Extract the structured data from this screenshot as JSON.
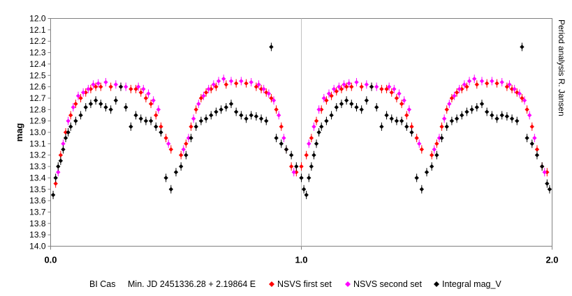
{
  "chart_data": {
    "type": "scatter",
    "title": "",
    "xlabel": "",
    "ylabel": "mag",
    "xlim": [
      0.0,
      2.0
    ],
    "ylim": [
      14.0,
      12.0
    ],
    "y_inverted": true,
    "x_ticks": [
      "0.0",
      "1.0",
      "2.0"
    ],
    "y_ticks": [
      "12.0",
      "12.1",
      "12.2",
      "12.3",
      "12.4",
      "12.5",
      "12.6",
      "12.7",
      "12.8",
      "12.9",
      "13.0",
      "13.1",
      "13.2",
      "13.3",
      "13.4",
      "13.5",
      "13.6",
      "13.7",
      "13.8",
      "13.9",
      "14.0"
    ],
    "side_annotation": "Period analysis  R. Jansen",
    "footer": {
      "star": "BI Cas",
      "ephemeris": "Min. JD 2451336.28 + 2.19864 E"
    },
    "grid": "vertical line at 1.0",
    "legend_position": "bottom",
    "series": [
      {
        "name": "NSVS first set",
        "color": "#ff0000",
        "marker": "diamond",
        "x": [
          0.02,
          0.04,
          0.06,
          0.08,
          0.1,
          0.12,
          0.14,
          0.16,
          0.18,
          0.2,
          0.24,
          0.28,
          0.32,
          0.34,
          0.36,
          0.38,
          0.4,
          0.42,
          0.44,
          0.46,
          0.48,
          0.52,
          0.54,
          0.56,
          0.58,
          0.6,
          0.62,
          0.64,
          0.66,
          0.7,
          0.74,
          0.78,
          0.82,
          0.84,
          0.86,
          0.88,
          0.9,
          0.92,
          0.94,
          0.96,
          0.98,
          1.0,
          1.02,
          1.04,
          1.06,
          1.08,
          1.1,
          1.12,
          1.14,
          1.16,
          1.18,
          1.2,
          1.24,
          1.28,
          1.32,
          1.34,
          1.36,
          1.38,
          1.4,
          1.42,
          1.44,
          1.46,
          1.48,
          1.52,
          1.54,
          1.56,
          1.58,
          1.6,
          1.62,
          1.64,
          1.66,
          1.7,
          1.74,
          1.78,
          1.82,
          1.84,
          1.86,
          1.88,
          1.9,
          1.92,
          1.94,
          1.96,
          1.98
        ],
        "y": [
          13.45,
          13.2,
          13.0,
          12.85,
          12.75,
          12.7,
          12.65,
          12.62,
          12.6,
          12.6,
          12.6,
          12.6,
          12.62,
          12.62,
          12.65,
          12.7,
          12.75,
          12.85,
          12.95,
          13.05,
          13.15,
          13.2,
          13.1,
          12.95,
          12.8,
          12.7,
          12.65,
          12.62,
          12.6,
          12.58,
          12.57,
          12.57,
          12.6,
          12.62,
          12.65,
          12.7,
          12.8,
          12.95,
          13.15,
          13.3,
          13.35,
          13.3,
          13.2,
          13.05,
          12.9,
          12.8,
          12.72,
          12.68,
          12.64,
          12.62,
          12.6,
          12.6,
          12.6,
          12.6,
          12.62,
          12.62,
          12.65,
          12.7,
          12.75,
          12.85,
          12.95,
          13.05,
          13.15,
          13.2,
          13.1,
          12.95,
          12.8,
          12.7,
          12.65,
          12.62,
          12.6,
          12.58,
          12.57,
          12.57,
          12.6,
          12.62,
          12.65,
          12.7,
          12.8,
          12.95,
          13.15,
          13.3,
          13.35
        ]
      },
      {
        "name": "NSVS second set",
        "color": "#ff00ff",
        "marker": "diamond",
        "x": [
          0.03,
          0.05,
          0.07,
          0.09,
          0.11,
          0.13,
          0.15,
          0.17,
          0.19,
          0.22,
          0.26,
          0.3,
          0.35,
          0.37,
          0.39,
          0.41,
          0.43,
          0.47,
          0.53,
          0.55,
          0.57,
          0.59,
          0.61,
          0.63,
          0.65,
          0.67,
          0.69,
          0.72,
          0.76,
          0.8,
          0.83,
          0.85,
          0.87,
          0.89,
          0.91,
          0.93,
          0.97,
          1.03,
          1.05,
          1.07,
          1.09,
          1.11,
          1.13,
          1.15,
          1.17,
          1.19,
          1.22,
          1.26,
          1.3,
          1.35,
          1.37,
          1.39,
          1.41,
          1.43,
          1.47,
          1.53,
          1.55,
          1.57,
          1.59,
          1.61,
          1.63,
          1.65,
          1.67,
          1.69,
          1.72,
          1.76,
          1.8,
          1.83,
          1.85,
          1.87,
          1.89,
          1.91,
          1.93,
          1.97
        ],
        "y": [
          13.35,
          13.1,
          12.9,
          12.78,
          12.68,
          12.65,
          12.62,
          12.58,
          12.57,
          12.56,
          12.58,
          12.6,
          12.6,
          12.62,
          12.66,
          12.72,
          12.8,
          13.1,
          13.15,
          13.05,
          12.88,
          12.75,
          12.68,
          12.62,
          12.58,
          12.55,
          12.53,
          12.55,
          12.55,
          12.56,
          12.58,
          12.62,
          12.66,
          12.72,
          12.85,
          13.05,
          13.35,
          13.1,
          12.95,
          12.8,
          12.7,
          12.66,
          12.62,
          12.6,
          12.58,
          12.57,
          12.56,
          12.58,
          12.6,
          12.6,
          12.62,
          12.66,
          12.72,
          12.8,
          13.1,
          13.15,
          13.05,
          12.88,
          12.75,
          12.68,
          12.62,
          12.58,
          12.55,
          12.53,
          12.55,
          12.55,
          12.56,
          12.58,
          12.62,
          12.66,
          12.72,
          12.85,
          13.05,
          13.35
        ]
      },
      {
        "name": "Integral mag_V",
        "color": "#000000",
        "marker": "diamond",
        "x": [
          0.01,
          0.02,
          0.03,
          0.04,
          0.05,
          0.06,
          0.07,
          0.08,
          0.1,
          0.12,
          0.14,
          0.16,
          0.18,
          0.2,
          0.22,
          0.24,
          0.26,
          0.28,
          0.3,
          0.32,
          0.34,
          0.36,
          0.38,
          0.4,
          0.42,
          0.44,
          0.46,
          0.48,
          0.5,
          0.52,
          0.54,
          0.56,
          0.58,
          0.6,
          0.62,
          0.64,
          0.66,
          0.68,
          0.7,
          0.72,
          0.74,
          0.76,
          0.78,
          0.8,
          0.82,
          0.84,
          0.86,
          0.88,
          0.9,
          0.92,
          0.94,
          0.96,
          0.98,
          1.0,
          1.01,
          1.02,
          1.03,
          1.04,
          1.05,
          1.06,
          1.07,
          1.08,
          1.1,
          1.12,
          1.14,
          1.16,
          1.18,
          1.2,
          1.22,
          1.24,
          1.26,
          1.28,
          1.3,
          1.32,
          1.34,
          1.36,
          1.38,
          1.4,
          1.42,
          1.44,
          1.46,
          1.48,
          1.5,
          1.52,
          1.54,
          1.56,
          1.58,
          1.6,
          1.62,
          1.64,
          1.66,
          1.68,
          1.7,
          1.72,
          1.74,
          1.76,
          1.78,
          1.8,
          1.82,
          1.84,
          1.86,
          1.88,
          1.9,
          1.92,
          1.94,
          1.96,
          1.98,
          1.99
        ],
        "y": [
          13.55,
          13.4,
          13.3,
          13.25,
          13.15,
          13.05,
          13.0,
          12.95,
          12.9,
          12.85,
          12.78,
          12.75,
          12.72,
          12.75,
          12.78,
          12.8,
          12.72,
          12.6,
          12.78,
          12.95,
          12.85,
          12.88,
          12.9,
          12.9,
          12.95,
          13.0,
          13.4,
          13.5,
          13.35,
          13.3,
          13.2,
          13.05,
          12.95,
          12.9,
          12.88,
          12.85,
          12.82,
          12.8,
          12.78,
          12.75,
          12.82,
          12.85,
          12.88,
          12.85,
          12.86,
          12.88,
          12.9,
          12.25,
          13.05,
          13.1,
          13.15,
          13.2,
          13.3,
          13.4,
          13.5,
          13.55,
          13.4,
          13.3,
          13.2,
          13.1,
          13.0,
          12.95,
          12.9,
          12.85,
          12.78,
          12.75,
          12.72,
          12.75,
          12.78,
          12.8,
          12.72,
          12.6,
          12.78,
          12.95,
          12.85,
          12.88,
          12.9,
          12.9,
          12.95,
          13.0,
          13.4,
          13.5,
          13.35,
          13.3,
          13.2,
          13.05,
          12.95,
          12.9,
          12.88,
          12.85,
          12.82,
          12.8,
          12.78,
          12.75,
          12.82,
          12.85,
          12.88,
          12.85,
          12.86,
          12.88,
          12.9,
          12.25,
          13.05,
          13.1,
          13.2,
          13.3,
          13.45,
          13.5
        ]
      }
    ]
  }
}
